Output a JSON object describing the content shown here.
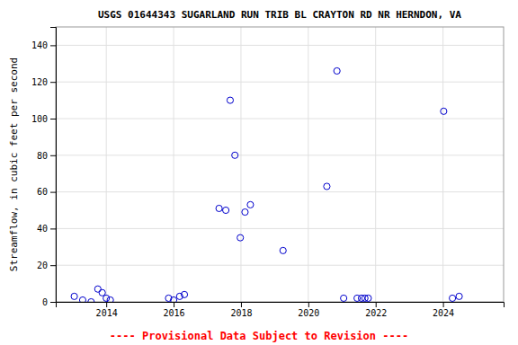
{
  "chart_data": {
    "type": "scatter",
    "title": "USGS 01644343 SUGARLAND RUN TRIB BL CRAYTON RD NR HERNDON, VA",
    "ylabel": "Streamflow, in cubic feet per second",
    "annotations": [
      "---- Provisional Data Subject to Revision ----"
    ],
    "x": [
      2013.05,
      2013.3,
      2013.55,
      2013.75,
      2013.88,
      2014.0,
      2014.12,
      2015.85,
      2016.0,
      2016.18,
      2016.32,
      2017.35,
      2017.55,
      2017.68,
      2017.82,
      2017.98,
      2018.12,
      2018.28,
      2019.25,
      2020.55,
      2020.85,
      2021.05,
      2021.45,
      2021.58,
      2021.68,
      2021.78,
      2024.02,
      2024.28,
      2024.48
    ],
    "values": [
      3,
      1,
      0,
      7,
      5,
      2,
      1,
      2,
      1,
      3,
      4,
      51,
      50,
      110,
      80,
      35,
      49,
      53,
      28,
      63,
      126,
      2,
      2,
      2,
      2,
      2,
      104,
      2,
      3
    ],
    "color": "#0000cc",
    "marker": "circle",
    "xlim": [
      2012.5,
      2025.8
    ],
    "ylim": [
      0,
      150
    ],
    "xticks": [
      2014,
      2016,
      2018,
      2020,
      2022,
      2024
    ],
    "yticks": [
      0,
      20,
      40,
      60,
      80,
      100,
      120,
      140
    ],
    "grid": true
  }
}
